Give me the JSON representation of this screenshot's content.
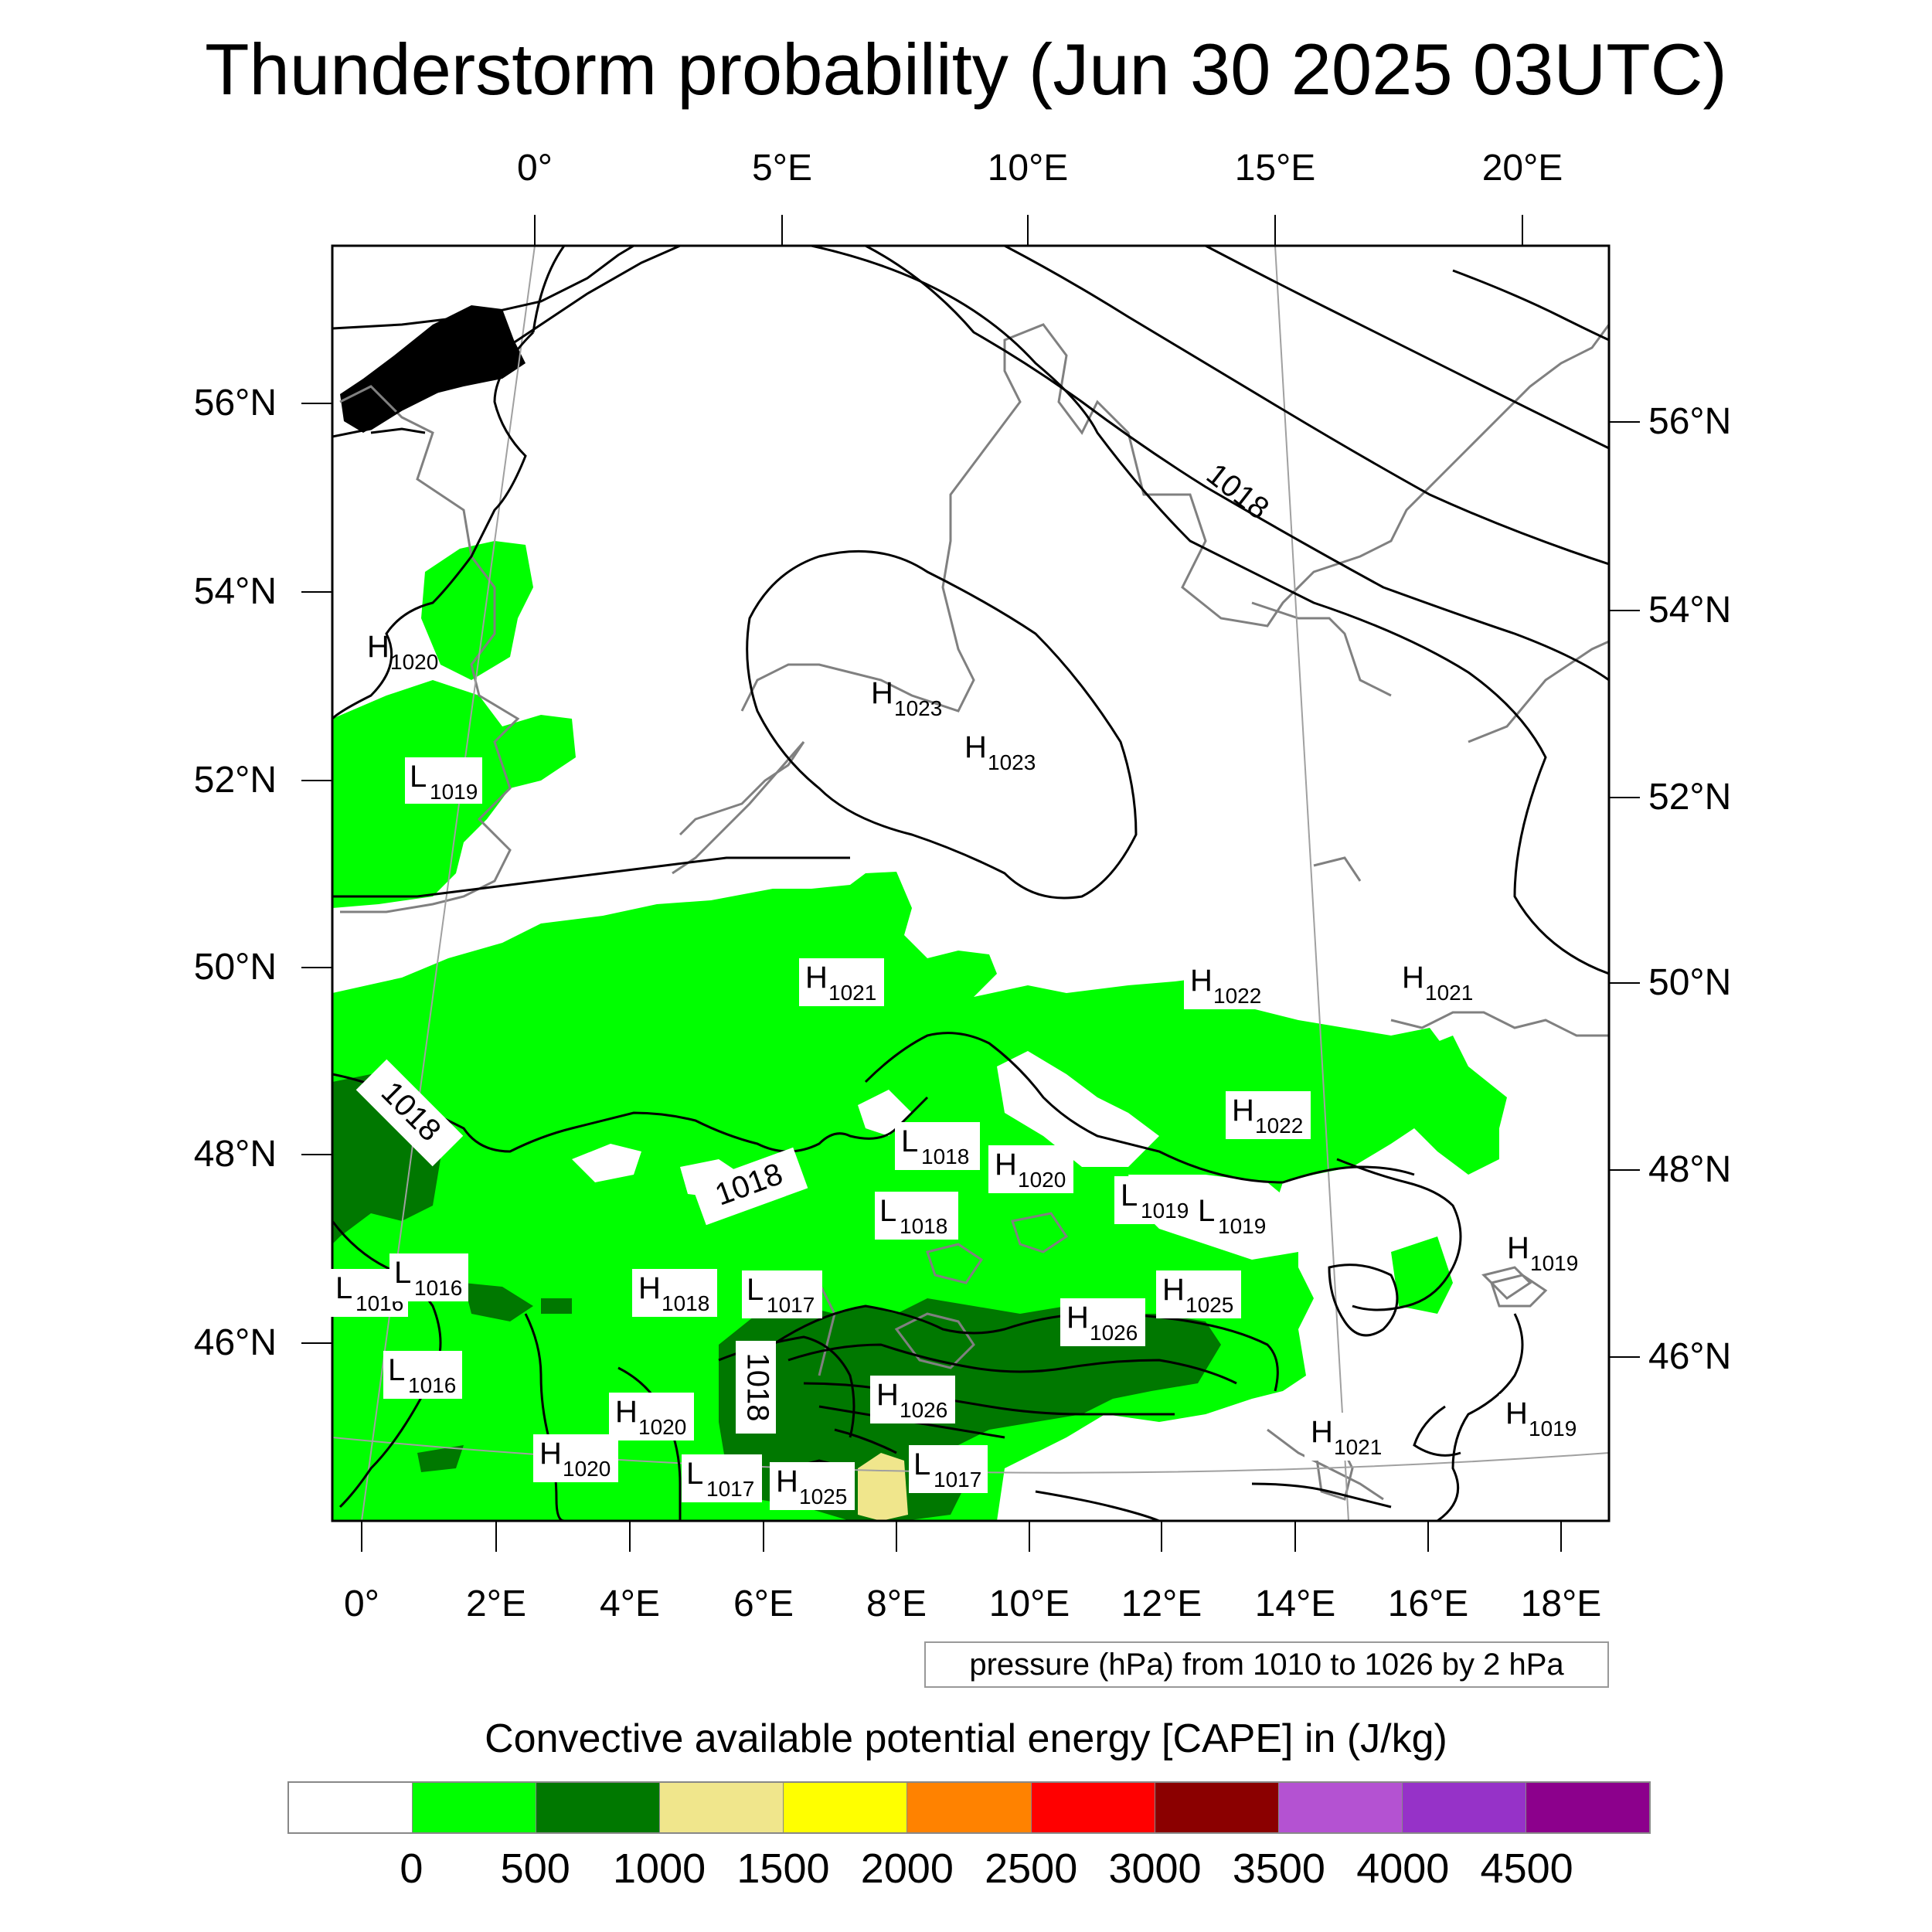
{
  "title": "Thunderstorm probability (Jun 30 2025 03UTC)",
  "axes": {
    "top": [
      "0°",
      "5°E",
      "10°E",
      "15°E",
      "20°E"
    ],
    "bottom": [
      "0°",
      "2°E",
      "4°E",
      "6°E",
      "8°E",
      "10°E",
      "12°E",
      "14°E",
      "16°E",
      "18°E"
    ],
    "left": [
      "56°N",
      "54°N",
      "52°N",
      "50°N",
      "48°N",
      "46°N"
    ],
    "right": [
      "56°N",
      "54°N",
      "52°N",
      "50°N",
      "48°N",
      "46°N"
    ]
  },
  "pressure_note": "pressure (hPa) from 1010 to 1026 by 2 hPa",
  "isobar_labels": [
    "1018",
    "1018",
    "1018",
    "1018"
  ],
  "pressure_centers": [
    {
      "type": "H",
      "value": "1020"
    },
    {
      "type": "L",
      "value": "1019"
    },
    {
      "type": "H",
      "value": "1023"
    },
    {
      "type": "H",
      "value": "1023"
    },
    {
      "type": "H",
      "value": "1021"
    },
    {
      "type": "H",
      "value": "1022"
    },
    {
      "type": "H",
      "value": "1021"
    },
    {
      "type": "H",
      "value": "1022"
    },
    {
      "type": "L",
      "value": "1018"
    },
    {
      "type": "H",
      "value": "1020"
    },
    {
      "type": "L",
      "value": "1019"
    },
    {
      "type": "L",
      "value": "1019"
    },
    {
      "type": "L",
      "value": "1018"
    },
    {
      "type": "H",
      "value": "1019"
    },
    {
      "type": "L",
      "value": "1016"
    },
    {
      "type": "L",
      "value": "1016"
    },
    {
      "type": "H",
      "value": "1018"
    },
    {
      "type": "L",
      "value": "1017"
    },
    {
      "type": "H",
      "value": "1025"
    },
    {
      "type": "H",
      "value": "1026"
    },
    {
      "type": "L",
      "value": "1016"
    },
    {
      "type": "H",
      "value": "1026"
    },
    {
      "type": "H",
      "value": "1020"
    },
    {
      "type": "H",
      "value": "1020"
    },
    {
      "type": "L",
      "value": "1017"
    },
    {
      "type": "H",
      "value": "1025"
    },
    {
      "type": "L",
      "value": "1017"
    },
    {
      "type": "H",
      "value": "1021"
    },
    {
      "type": "H",
      "value": "1019"
    }
  ],
  "colorbar": {
    "title": "Convective available potential energy [CAPE] in (J/kg)",
    "colors": [
      "#ffffff",
      "#00ff00",
      "#007800",
      "#f0e68c",
      "#ffff00",
      "#ff8200",
      "#ff0000",
      "#8b0000",
      "#b452d2",
      "#9632c8",
      "#8c008c"
    ],
    "labels": [
      "0",
      "500",
      "1000",
      "1500",
      "2000",
      "2500",
      "3000",
      "3500",
      "4000",
      "4500"
    ]
  },
  "colors": {
    "cape_low": "#00ff00",
    "cape_mid": "#007800",
    "cape_high": "#f0e68c",
    "isobar": "#000000",
    "coastline": "#808080"
  }
}
